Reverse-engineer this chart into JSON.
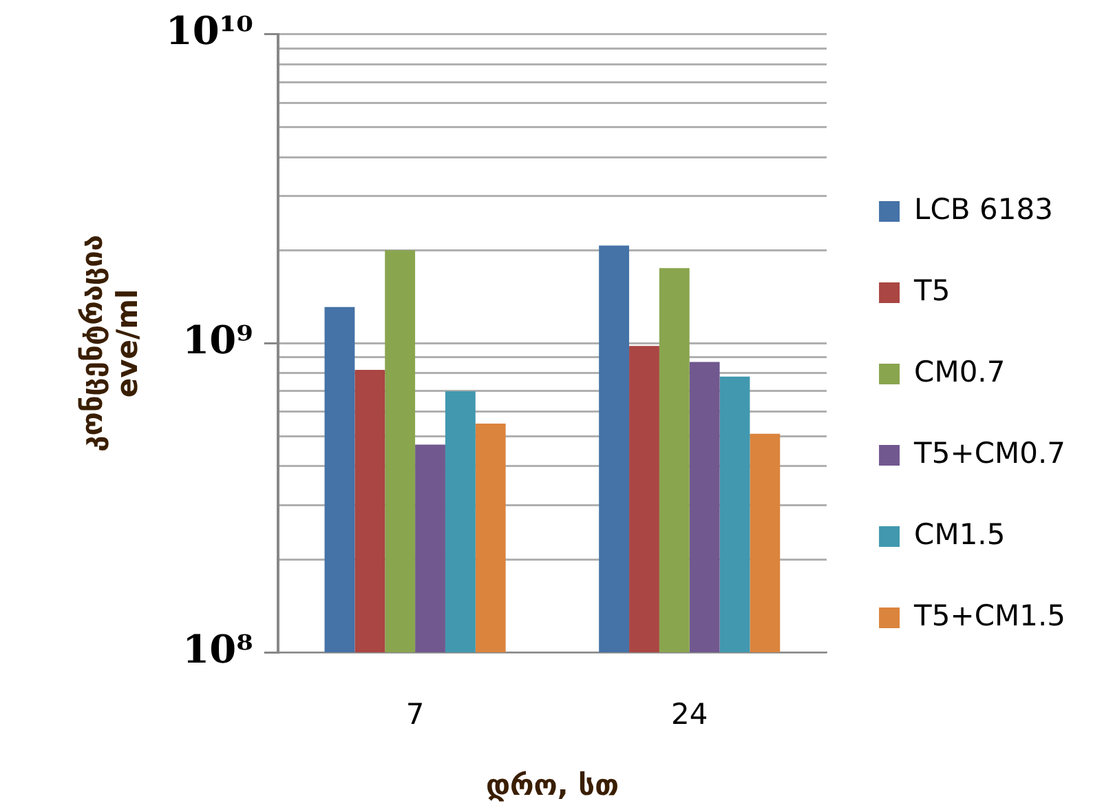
{
  "chart_data": {
    "type": "bar",
    "xlabel": "დრო, სთ",
    "ylabel": "კონცენტრაცია\neve/ml",
    "categories": [
      "7",
      "24"
    ],
    "series": [
      {
        "name": "LCB 6183",
        "color": "#4572a7",
        "values": [
          1310000000.0,
          2070000000.0
        ]
      },
      {
        "name": "T5",
        "color": "#aa4643",
        "values": [
          820000000.0,
          980000000.0
        ]
      },
      {
        "name": "CM0.7",
        "color": "#89a54e",
        "values": [
          2000000000.0,
          1750000000.0
        ]
      },
      {
        "name": "T5+CM0.7",
        "color": "#71588f",
        "values": [
          470000000.0,
          870000000.0
        ]
      },
      {
        "name": "CM1.5",
        "color": "#4198af",
        "values": [
          700000000.0,
          780000000.0
        ]
      },
      {
        "name": "T5+CM1.5",
        "color": "#db843d",
        "values": [
          550000000.0,
          510000000.0
        ]
      }
    ],
    "log": "y",
    "ylim": [
      100000000.0,
      10000000000.0
    ],
    "yticks": [
      {
        "value": 100000000.0,
        "label": "10⁸"
      },
      {
        "value": 200000000.0,
        "label": null
      },
      {
        "value": 300000000.0,
        "label": null
      },
      {
        "value": 400000000.0,
        "label": null
      },
      {
        "value": 500000000.0,
        "label": null
      },
      {
        "value": 600000000.0,
        "label": null
      },
      {
        "value": 700000000.0,
        "label": null
      },
      {
        "value": 800000000.0,
        "label": null
      },
      {
        "value": 900000000.0,
        "label": null
      },
      {
        "value": 1000000000.0,
        "label": "10⁹"
      },
      {
        "value": 2000000000.0,
        "label": null
      },
      {
        "value": 3000000000.0,
        "label": null
      },
      {
        "value": 4000000000.0,
        "label": null
      },
      {
        "value": 5000000000.0,
        "label": null
      },
      {
        "value": 6000000000.0,
        "label": null
      },
      {
        "value": 7000000000.0,
        "label": null
      },
      {
        "value": 8000000000.0,
        "label": null
      },
      {
        "value": 9000000000.0,
        "label": null
      },
      {
        "value": 10000000000.0,
        "label": "10¹⁰"
      }
    ],
    "grid": "y",
    "legend": "right"
  }
}
